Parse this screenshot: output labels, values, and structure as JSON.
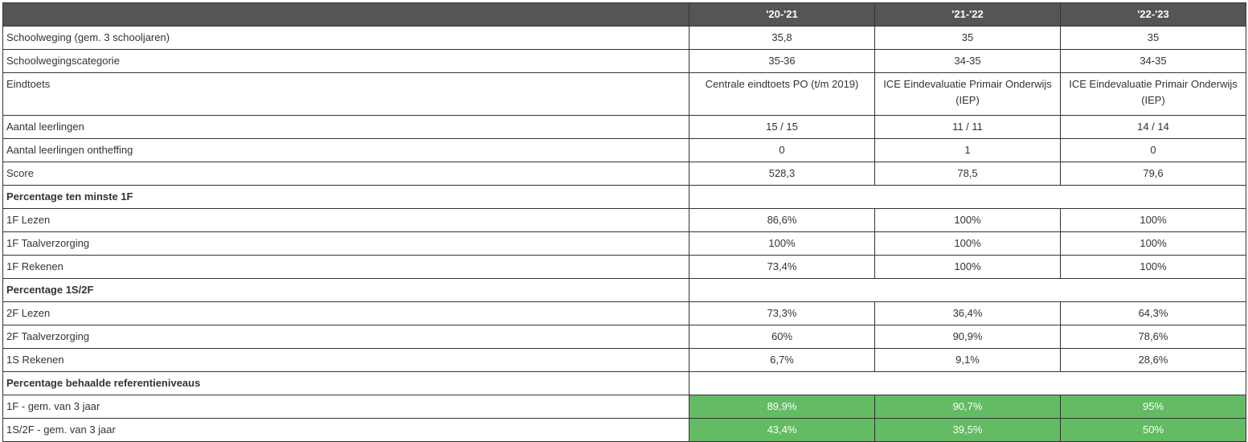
{
  "header": {
    "empty": "",
    "years": [
      "'20-'21",
      "'21-'22",
      "'22-'23"
    ]
  },
  "rows": {
    "schoolweging": {
      "label": "Schoolweging (gem. 3 schooljaren)",
      "values": [
        "35,8",
        "35",
        "35"
      ]
    },
    "categorie": {
      "label": "Schoolwegingscategorie",
      "values": [
        "35-36",
        "34-35",
        "34-35"
      ]
    },
    "eindtoets": {
      "label": "Eindtoets",
      "values": [
        "Centrale eindtoets PO (t/m 2019)",
        "ICE Eindevaluatie Primair Onderwijs (IEP)",
        "ICE Eindevaluatie Primair Onderwijs (IEP)"
      ]
    },
    "aantal": {
      "label": "Aantal leerlingen",
      "values": [
        "15 / 15",
        "11 / 11",
        "14 / 14"
      ]
    },
    "ontheffing": {
      "label": "Aantal leerlingen ontheffing",
      "values": [
        "0",
        "1",
        "0"
      ]
    },
    "score": {
      "label": "Score",
      "values": [
        "528,3",
        "78,5",
        "79,6"
      ]
    },
    "section_1f": {
      "label": "Percentage ten minste 1F"
    },
    "lezen_1f": {
      "label": "1F Lezen",
      "values": [
        "86,6%",
        "100%",
        "100%"
      ]
    },
    "taal_1f": {
      "label": "1F Taalverzorging",
      "values": [
        "100%",
        "100%",
        "100%"
      ]
    },
    "rekenen_1f": {
      "label": "1F Rekenen",
      "values": [
        "73,4%",
        "100%",
        "100%"
      ]
    },
    "section_1s2f": {
      "label": "Percentage 1S/2F"
    },
    "lezen_2f": {
      "label": "2F Lezen",
      "values": [
        "73,3%",
        "36,4%",
        "64,3%"
      ]
    },
    "taal_2f": {
      "label": "2F Taalverzorging",
      "values": [
        "60%",
        "90,9%",
        "78,6%"
      ]
    },
    "rekenen_1s": {
      "label": "1S Rekenen",
      "values": [
        "6,7%",
        "9,1%",
        "28,6%"
      ]
    },
    "section_ref": {
      "label": "Percentage behaalde referentieniveaus"
    },
    "gem_1f": {
      "label": "1F - gem. van 3 jaar",
      "values": [
        "89,9%",
        "90,7%",
        "95%"
      ]
    },
    "gem_1s2f": {
      "label": "1S/2F - gem. van 3 jaar",
      "values": [
        "43,4%",
        "39,5%",
        "50%"
      ]
    }
  },
  "colors": {
    "header_bg": "#555555",
    "highlight_bg": "#63bb63",
    "border": "#333333"
  }
}
